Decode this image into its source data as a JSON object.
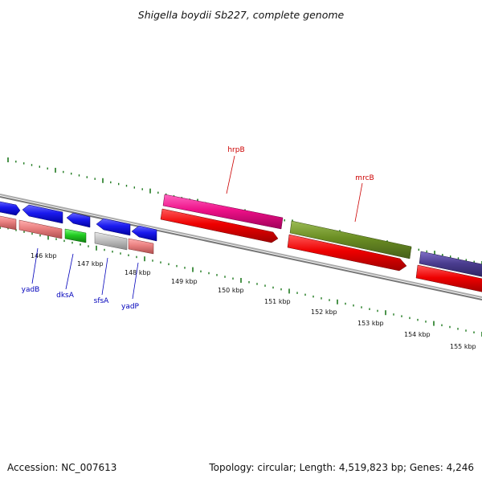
{
  "title": "Shigella boydii Sb227, complete genome",
  "footer": {
    "accession": "Accession: NC_007613",
    "summary": "Topology: circular; Length: 4,519,823 bp; Genes: 4,246"
  },
  "ruler": {
    "labels": [
      "146 kbp",
      "147 kbp",
      "148 kbp",
      "149 kbp",
      "150 kbp",
      "151 kbp",
      "152 kbp",
      "153 kbp",
      "154 kbp",
      "155 kbp"
    ]
  },
  "genes": {
    "upper": [
      {
        "label": "hrpB",
        "color": "#cc0000"
      },
      {
        "label": "mrcB",
        "color": "#cc0000"
      }
    ],
    "lower": [
      {
        "label": "yadB",
        "color": "#0000bb"
      },
      {
        "label": "dksA",
        "color": "#0000bb"
      },
      {
        "label": "sfsA",
        "color": "#0000bb"
      },
      {
        "label": "yadP",
        "color": "#0000bb"
      }
    ]
  },
  "colors": {
    "tick": "#1f7a1f",
    "backbone": "#888888",
    "blue_gene": "#1a1aee",
    "pink_gene": "#ee1188",
    "olive_gene": "#6b8e23",
    "purple_gene": "#4a3d8f",
    "red_cds": "#ee0000",
    "salmon_rna": "#e98080",
    "green_gene": "#22cc22",
    "grey_gene": "#c0c0c0"
  }
}
